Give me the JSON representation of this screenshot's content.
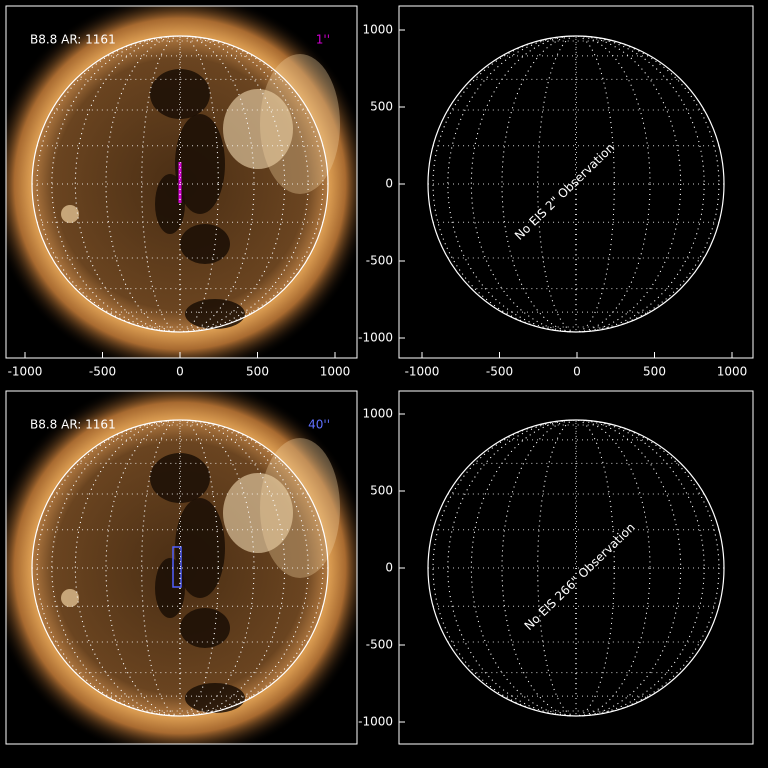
{
  "top_left": {
    "label": "B8.8 AR: 1161",
    "slit": "1''",
    "xtick_labels": [
      -1000,
      -500,
      0,
      500,
      1000
    ]
  },
  "top_right": {
    "message": "No EIS 2\" Observation",
    "xtick_labels": [
      -1000,
      -500,
      0,
      500,
      1000
    ],
    "ytick_labels": [
      1000,
      500,
      0,
      -500,
      -1000
    ]
  },
  "bottom_left": {
    "label": "B8.8 AR: 1161",
    "slit": "40''"
  },
  "bottom_right": {
    "message": "No EIS 266\" Observation",
    "ytick_labels": [
      1000,
      500,
      0,
      -500,
      -1000
    ]
  }
}
